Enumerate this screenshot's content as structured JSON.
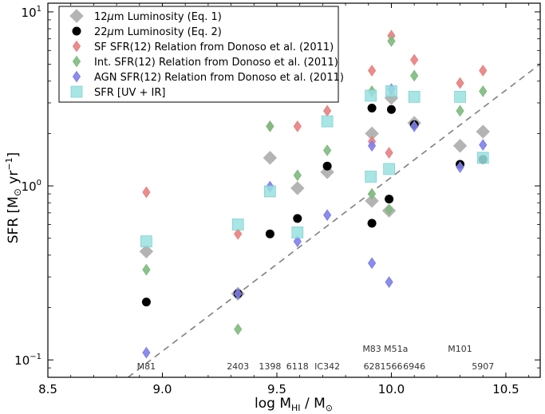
{
  "chart_data": {
    "type": "scatter",
    "title": "",
    "xlabel": "log M_HI / M_sun",
    "ylabel": "SFR [M_sun yr^-1]",
    "xlim": [
      8.5,
      10.65
    ],
    "ylim_log10": [
      -1.1,
      1.05
    ],
    "yscale": "log",
    "x_ticks": [
      {
        "value": 8.5,
        "label": "8.5"
      },
      {
        "value": 9.0,
        "label": "9.0"
      },
      {
        "value": 9.5,
        "label": "9.5"
      },
      {
        "value": 10.0,
        "label": "10.0"
      },
      {
        "value": 10.5,
        "label": "10.5"
      }
    ],
    "y_ticks": [
      {
        "value": 0.1,
        "base": "10",
        "exp": "−1"
      },
      {
        "value": 1,
        "base": "10",
        "exp": "0"
      },
      {
        "value": 10,
        "base": "10",
        "exp": "1"
      }
    ],
    "axis_labels": {
      "y_pre": "SFR [M",
      "y_sub": "⊙",
      "y_mid": " yr",
      "y_sup": "−1",
      "y_post": "]",
      "x_pre": "log M",
      "x_sub": "HI",
      "x_mid": " / M",
      "x_sub2": "⊙"
    },
    "reference_line": {
      "slope": 1.0,
      "intercept": -9.95,
      "style": "dashed",
      "color": "#808080"
    },
    "galaxy_labels": [
      {
        "name": "M81",
        "x": 8.93,
        "row": 2
      },
      {
        "name": "2403",
        "x": 9.33,
        "row": 2
      },
      {
        "name": "1398",
        "x": 9.47,
        "row": 2
      },
      {
        "name": "6118",
        "x": 9.59,
        "row": 2
      },
      {
        "name": "IC342",
        "x": 9.72,
        "row": 2
      },
      {
        "name": "628",
        "x": 9.915,
        "row": 2
      },
      {
        "name": "1566",
        "x": 10.0,
        "row": 2
      },
      {
        "name": "6946",
        "x": 10.1,
        "row": 2
      },
      {
        "name": "5907",
        "x": 10.4,
        "row": 2
      },
      {
        "name": "M83",
        "x": 9.915,
        "row": 1
      },
      {
        "name": "M51a",
        "x": 10.02,
        "row": 1
      },
      {
        "name": "M101",
        "x": 10.3,
        "row": 1
      }
    ],
    "series": [
      {
        "name": "12μm Luminosity (Eq. 1)",
        "legend_pre": "12",
        "legend_greek": "μ",
        "legend_post": "m Luminosity (Eq. 1)",
        "marker": "diamond-large",
        "color": "#b4b4b4",
        "x": [
          8.93,
          9.33,
          9.47,
          9.59,
          9.72,
          9.915,
          9.915,
          9.99,
          10.0,
          10.1,
          10.3,
          10.4
        ],
        "y": [
          0.42,
          0.24,
          1.45,
          0.97,
          1.2,
          2.0,
          0.82,
          0.72,
          3.2,
          2.3,
          1.7,
          2.05
        ]
      },
      {
        "name": "22μm Luminosity (Eq. 2)",
        "legend_pre": "22",
        "legend_greek": "μ",
        "legend_post": "m Luminosity (Eq. 2)",
        "marker": "circle",
        "color": "#000000",
        "x": [
          8.93,
          9.33,
          9.47,
          9.59,
          9.72,
          9.915,
          9.915,
          9.99,
          10.0,
          10.1,
          10.3,
          10.4
        ],
        "y": [
          0.215,
          0.24,
          0.53,
          0.65,
          1.3,
          0.61,
          2.8,
          0.84,
          2.75,
          2.25,
          1.33,
          1.42
        ]
      },
      {
        "name": "SF SFR(12) Relation from Donoso et al. (2011)",
        "legend_pre": "SF SFR(12) Relation from Donoso et al. (2011)",
        "legend_greek": "",
        "legend_post": "",
        "marker": "diamond-small",
        "color": "#e88080",
        "x": [
          8.93,
          9.33,
          9.47,
          9.59,
          9.72,
          9.915,
          9.915,
          9.99,
          10.0,
          10.1,
          10.3,
          10.4
        ],
        "y": [
          0.92,
          0.53,
          2.2,
          2.2,
          2.7,
          4.6,
          1.8,
          1.55,
          7.3,
          5.3,
          3.9,
          4.6
        ]
      },
      {
        "name": "Int. SFR(12) Relation from Donoso et al. (2011)",
        "legend_pre": "Int. SFR(12) Relation from Donoso et al. (2011)",
        "legend_greek": "",
        "legend_post": "",
        "marker": "diamond-small",
        "color": "#7fba7f",
        "x": [
          8.93,
          9.33,
          9.47,
          9.59,
          9.72,
          9.915,
          9.915,
          9.99,
          10.0,
          10.1,
          10.3,
          10.4
        ],
        "y": [
          0.33,
          0.15,
          2.2,
          1.15,
          1.6,
          3.5,
          0.9,
          0.73,
          6.8,
          4.3,
          2.7,
          3.5
        ]
      },
      {
        "name": "AGN SFR(12) Relation from Donoso et al. (2011)",
        "legend_pre": "AGN SFR(12) Relation from Donoso et al. (2011)",
        "legend_greek": "",
        "legend_post": "",
        "marker": "diamond-small",
        "color": "#7f7fe8",
        "x": [
          8.93,
          9.33,
          9.47,
          9.59,
          9.72,
          9.915,
          9.915,
          9.99,
          10.0,
          10.1,
          10.3,
          10.4
        ],
        "y": [
          0.11,
          0.24,
          0.99,
          0.48,
          0.68,
          1.7,
          0.36,
          0.28,
          3.6,
          2.2,
          1.28,
          1.72
        ]
      },
      {
        "name": "SFR [UV + IR]",
        "legend_pre": "SFR [UV + IR]",
        "legend_greek": "",
        "legend_post": "",
        "marker": "square",
        "color": "#99e0e0",
        "x": [
          8.93,
          9.33,
          9.47,
          9.59,
          9.72,
          9.91,
          9.91,
          9.99,
          10.0,
          10.1,
          10.3,
          10.4
        ],
        "y": [
          0.48,
          0.6,
          0.93,
          0.54,
          2.35,
          1.13,
          3.3,
          1.25,
          3.5,
          3.25,
          3.25,
          1.45
        ]
      }
    ]
  }
}
